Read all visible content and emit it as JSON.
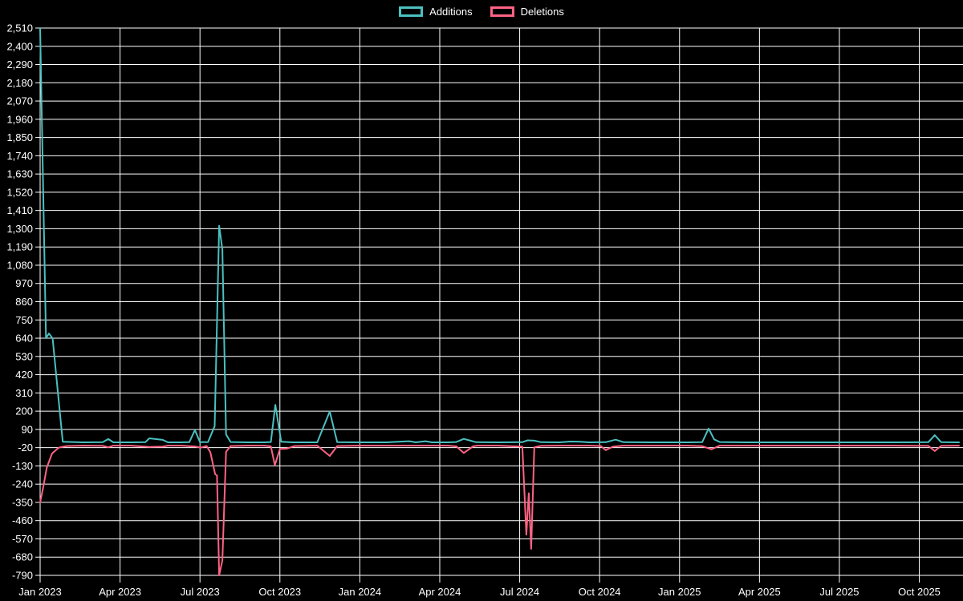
{
  "colors": {
    "background": "#000000",
    "grid": "#ffffff",
    "axis_text": "#ffffff",
    "additions": "#4bc0c0",
    "deletions": "#ff6384"
  },
  "legend": {
    "position": "top",
    "items": [
      {
        "label": "Additions",
        "color": "#4bc0c0"
      },
      {
        "label": "Deletions",
        "color": "#ff6384"
      }
    ]
  },
  "chart_data": {
    "type": "line",
    "title": "",
    "xlabel": "",
    "ylabel": "",
    "grid": true,
    "legend_position": "top",
    "x_axis": {
      "months_span": 34.64,
      "ticks": [
        {
          "label": "Jan 2023",
          "m": 0
        },
        {
          "label": "Apr 2023",
          "m": 3
        },
        {
          "label": "Jul 2023",
          "m": 6
        },
        {
          "label": "Oct 2023",
          "m": 9
        },
        {
          "label": "Jan 2024",
          "m": 12
        },
        {
          "label": "Apr 2024",
          "m": 15
        },
        {
          "label": "Jul 2024",
          "m": 18
        },
        {
          "label": "Oct 2024",
          "m": 21
        },
        {
          "label": "Jan 2025",
          "m": 24
        },
        {
          "label": "Apr 2025",
          "m": 27
        },
        {
          "label": "Jul 2025",
          "m": 30
        },
        {
          "label": "Oct 2025",
          "m": 33
        }
      ]
    },
    "y_axis": {
      "min": -790,
      "max": 2510,
      "step": 110,
      "tick_values": [
        2510,
        2400,
        2290,
        2180,
        2070,
        1960,
        1850,
        1740,
        1630,
        1520,
        1410,
        1300,
        1190,
        1080,
        970,
        860,
        750,
        640,
        530,
        420,
        310,
        200,
        90,
        -20,
        -130,
        -240,
        -350,
        -460,
        -570,
        -680,
        -790
      ]
    },
    "series": [
      {
        "name": "Additions",
        "color": "#4bc0c0",
        "points": [
          [
            0,
            2510
          ],
          [
            0.22,
            640
          ],
          [
            0.33,
            668
          ],
          [
            0.47,
            638
          ],
          [
            0.67,
            310
          ],
          [
            0.85,
            16
          ],
          [
            1.6,
            12
          ],
          [
            2.35,
            13
          ],
          [
            2.56,
            32
          ],
          [
            2.75,
            12
          ],
          [
            3.4,
            12
          ],
          [
            3.95,
            13
          ],
          [
            4.1,
            36
          ],
          [
            4.6,
            27
          ],
          [
            4.8,
            12
          ],
          [
            5.3,
            12
          ],
          [
            5.6,
            13
          ],
          [
            5.81,
            86
          ],
          [
            6.0,
            13
          ],
          [
            6.3,
            14
          ],
          [
            6.55,
            110
          ],
          [
            6.72,
            1318
          ],
          [
            6.84,
            1175
          ],
          [
            6.98,
            60
          ],
          [
            7.15,
            14
          ],
          [
            7.8,
            12
          ],
          [
            8.4,
            12
          ],
          [
            8.66,
            14
          ],
          [
            8.83,
            238
          ],
          [
            9.05,
            16
          ],
          [
            9.5,
            12
          ],
          [
            10.4,
            12
          ],
          [
            10.87,
            198
          ],
          [
            11.15,
            13
          ],
          [
            12.0,
            12
          ],
          [
            13.0,
            12
          ],
          [
            13.86,
            19
          ],
          [
            14.1,
            12
          ],
          [
            14.46,
            19
          ],
          [
            14.7,
            12
          ],
          [
            15.3,
            12
          ],
          [
            15.62,
            14
          ],
          [
            15.9,
            33
          ],
          [
            16.15,
            22
          ],
          [
            16.36,
            13
          ],
          [
            17.2,
            12
          ],
          [
            18.1,
            13
          ],
          [
            18.3,
            24
          ],
          [
            18.55,
            22
          ],
          [
            18.8,
            13
          ],
          [
            19.5,
            12
          ],
          [
            19.91,
            17
          ],
          [
            20.27,
            16
          ],
          [
            20.6,
            12
          ],
          [
            21.23,
            13
          ],
          [
            21.6,
            28
          ],
          [
            21.9,
            13
          ],
          [
            23.0,
            12
          ],
          [
            24.3,
            12
          ],
          [
            24.85,
            13
          ],
          [
            25.09,
            95
          ],
          [
            25.3,
            30
          ],
          [
            25.51,
            14
          ],
          [
            26.5,
            12
          ],
          [
            28.0,
            12
          ],
          [
            30.0,
            12
          ],
          [
            32.0,
            12
          ],
          [
            33.34,
            13
          ],
          [
            33.58,
            55
          ],
          [
            33.82,
            13
          ],
          [
            34.49,
            12
          ]
        ]
      },
      {
        "name": "Deletions",
        "color": "#ff6384",
        "points": [
          [
            0,
            -350
          ],
          [
            0.12,
            -255
          ],
          [
            0.25,
            -140
          ],
          [
            0.45,
            -55
          ],
          [
            0.7,
            -20
          ],
          [
            1.0,
            -10
          ],
          [
            1.6,
            -8
          ],
          [
            2.35,
            -9
          ],
          [
            2.56,
            -18
          ],
          [
            2.75,
            -8
          ],
          [
            3.4,
            -8
          ],
          [
            4.1,
            -16
          ],
          [
            4.6,
            -14
          ],
          [
            4.8,
            -8
          ],
          [
            5.3,
            -8
          ],
          [
            5.81,
            -13
          ],
          [
            6.02,
            -20
          ],
          [
            6.25,
            -10
          ],
          [
            6.39,
            -48
          ],
          [
            6.57,
            -180
          ],
          [
            6.64,
            -188
          ],
          [
            6.72,
            -790
          ],
          [
            6.84,
            -700
          ],
          [
            6.98,
            -45
          ],
          [
            7.15,
            -10
          ],
          [
            7.8,
            -8
          ],
          [
            8.4,
            -8
          ],
          [
            8.66,
            -12
          ],
          [
            8.81,
            -125
          ],
          [
            9.0,
            -28
          ],
          [
            9.25,
            -26
          ],
          [
            9.55,
            -10
          ],
          [
            10.4,
            -8
          ],
          [
            10.87,
            -70
          ],
          [
            11.15,
            -10
          ],
          [
            12.0,
            -8
          ],
          [
            13.0,
            -8
          ],
          [
            14.0,
            -8
          ],
          [
            15.3,
            -8
          ],
          [
            15.62,
            -12
          ],
          [
            15.9,
            -52
          ],
          [
            16.25,
            -12
          ],
          [
            16.4,
            -8
          ],
          [
            17.2,
            -8
          ],
          [
            18.1,
            -14
          ],
          [
            18.25,
            -545
          ],
          [
            18.34,
            -295
          ],
          [
            18.43,
            -630
          ],
          [
            18.55,
            -18
          ],
          [
            18.8,
            -9
          ],
          [
            19.5,
            -8
          ],
          [
            20.6,
            -8
          ],
          [
            21.05,
            -10
          ],
          [
            21.23,
            -35
          ],
          [
            21.5,
            -14
          ],
          [
            21.9,
            -8
          ],
          [
            23.0,
            -8
          ],
          [
            24.3,
            -8
          ],
          [
            24.85,
            -11
          ],
          [
            25.2,
            -30
          ],
          [
            25.51,
            -8
          ],
          [
            26.5,
            -8
          ],
          [
            28.0,
            -8
          ],
          [
            30.0,
            -8
          ],
          [
            32.0,
            -8
          ],
          [
            33.34,
            -9
          ],
          [
            33.58,
            -40
          ],
          [
            33.82,
            -9
          ],
          [
            34.49,
            -8
          ]
        ]
      }
    ]
  }
}
